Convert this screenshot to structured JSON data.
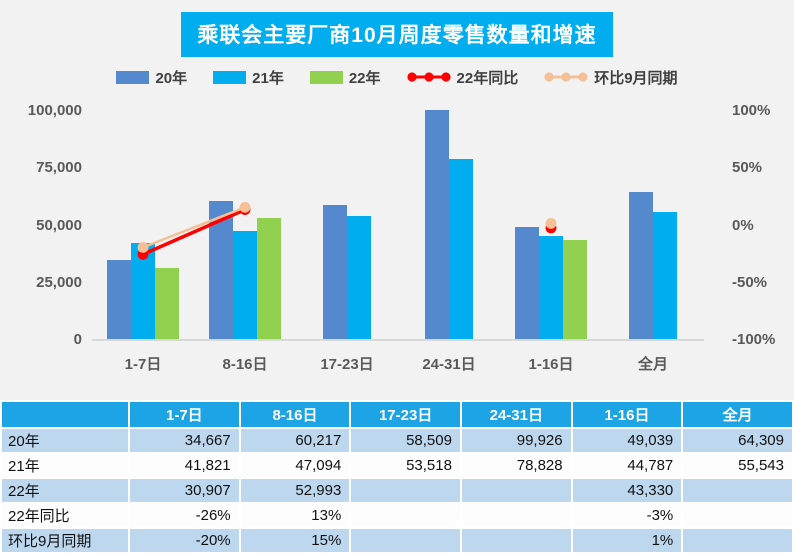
{
  "title": "乘联会主要厂商10月周度零售数量和增速",
  "colors": {
    "title_bg": "#00AEEF",
    "title_text": "#FFFFFF",
    "chart_bg": "#F2F2F2",
    "bar_2020": "#5589CE",
    "bar_2021": "#00AEEF",
    "bar_2022": "#92D050",
    "line_yoy": "#FF0000",
    "line_mom": "#F6C096",
    "axis_text": "#595959",
    "table_header_bg": "#1CA4E4",
    "table_row_alt": "#BDD7EE",
    "table_row": "#FDFDFD"
  },
  "legend": [
    {
      "label": "20年",
      "type": "bar",
      "color": "#5589CE"
    },
    {
      "label": "21年",
      "type": "bar",
      "color": "#00AEEF"
    },
    {
      "label": "22年",
      "type": "bar",
      "color": "#92D050"
    },
    {
      "label": "22年同比",
      "type": "line",
      "color": "#FF0000"
    },
    {
      "label": "环比9月同期",
      "type": "line",
      "color": "#F6C096"
    }
  ],
  "chart_data": {
    "type": "bar",
    "title": "乘联会主要厂商10月周度零售数量和增速",
    "categories": [
      "1-7日",
      "8-16日",
      "17-23日",
      "24-31日",
      "1-16日",
      "全月"
    ],
    "left_axis": {
      "min": 0,
      "max": 100000,
      "ticks": [
        "0",
        "25,000",
        "50,000",
        "75,000",
        "100,000"
      ]
    },
    "right_axis": {
      "min": -100,
      "max": 100,
      "ticks": [
        "-100%",
        "-50%",
        "0%",
        "50%",
        "100%"
      ]
    },
    "grid": false,
    "legend_position": "top",
    "series": [
      {
        "name": "20年",
        "type": "bar",
        "axis": "left",
        "color": "#5589CE",
        "values": [
          34667,
          60217,
          58509,
          99926,
          49039,
          64309
        ]
      },
      {
        "name": "21年",
        "type": "bar",
        "axis": "left",
        "color": "#00AEEF",
        "values": [
          41821,
          47094,
          53518,
          78828,
          44787,
          55543
        ]
      },
      {
        "name": "22年",
        "type": "bar",
        "axis": "left",
        "color": "#92D050",
        "values": [
          30907,
          52993,
          null,
          null,
          43330,
          null
        ]
      },
      {
        "name": "22年同比",
        "type": "line",
        "axis": "right",
        "color": "#FF0000",
        "stroke_width": 3.5,
        "values": [
          -26,
          13,
          null,
          null,
          -3,
          null
        ]
      },
      {
        "name": "环比9月同期",
        "type": "line",
        "axis": "right",
        "color": "#F6C096",
        "stroke_width": 2.5,
        "values": [
          -20,
          15,
          null,
          null,
          1,
          null
        ]
      }
    ]
  },
  "table": {
    "header": [
      "",
      "1-7日",
      "8-16日",
      "17-23日",
      "24-31日",
      "1-16日",
      "全月"
    ],
    "rows": [
      {
        "label": "20年",
        "values": [
          "34,667",
          "60,217",
          "58,509",
          "99,926",
          "49,039",
          "64,309"
        ]
      },
      {
        "label": "21年",
        "values": [
          "41,821",
          "47,094",
          "53,518",
          "78,828",
          "44,787",
          "55,543"
        ]
      },
      {
        "label": "22年",
        "values": [
          "30,907",
          "52,993",
          "",
          "",
          "43,330",
          ""
        ]
      },
      {
        "label": "22年同比",
        "values": [
          "-26%",
          "13%",
          "",
          "",
          "-3%",
          ""
        ]
      },
      {
        "label": "环比9月同期",
        "values": [
          "-20%",
          "15%",
          "",
          "",
          "1%",
          ""
        ]
      }
    ]
  }
}
